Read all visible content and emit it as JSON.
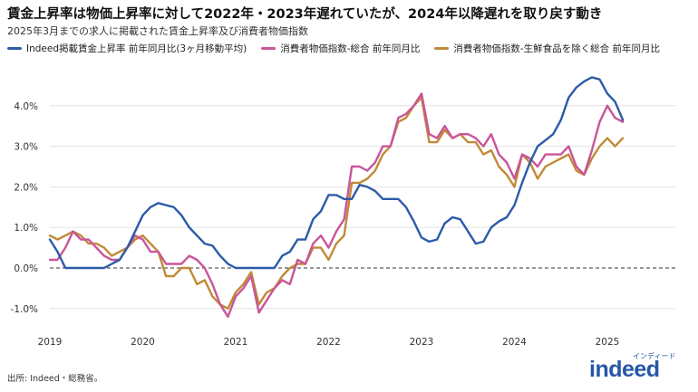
{
  "title": "賃金上昇率は物価上昇率に対して2022年・2023年遅れていたが、2024年以降遅れを取り戻す動き",
  "subtitle": "2025年3月までの求人に掲載された賃金上昇率及び消費者物価指数",
  "source": "出所: Indeed・総務省。",
  "logo": {
    "main": "indeed",
    "sub": "インディード"
  },
  "chart_data": {
    "type": "line",
    "title": "賃金上昇率は物価上昇率に対して2022年・2023年遅れていたが、2024年以降遅れを取り戻す動き",
    "subtitle": "2025年3月までの求人に掲載された賃金上昇率及び消費者物価指数",
    "xlabel": "",
    "ylabel": "",
    "x_start": "2019-01",
    "x_end": "2025-03",
    "x_ticks": [
      "2019",
      "2020",
      "2021",
      "2022",
      "2023",
      "2024",
      "2025"
    ],
    "ylim": [
      -1.4,
      4.8
    ],
    "y_ticks": [
      -1,
      0,
      1,
      2,
      3,
      4
    ],
    "y_tick_labels": [
      "-1.0%",
      "0.0%",
      "1.0%",
      "2.0%",
      "3.0%",
      "4.0%"
    ],
    "zero_line": "dashed",
    "grid": "horizontal",
    "legend_position": "top",
    "series": [
      {
        "name": "Indeed掲載賃金上昇率 前年同月比(3ヶ月移動平均)",
        "color": "#2b5ba8",
        "values": [
          0.7,
          0.4,
          0.0,
          0.0,
          0.0,
          0.0,
          0.0,
          0.0,
          0.1,
          0.2,
          0.5,
          0.9,
          1.3,
          1.5,
          1.6,
          1.55,
          1.5,
          1.3,
          1.0,
          0.8,
          0.6,
          0.55,
          0.3,
          0.1,
          0.0,
          0.0,
          0.0,
          0.0,
          0.0,
          0.0,
          0.3,
          0.4,
          0.7,
          0.7,
          1.2,
          1.4,
          1.8,
          1.8,
          1.7,
          1.7,
          2.05,
          2.0,
          1.9,
          1.7,
          1.7,
          1.7,
          1.5,
          1.15,
          0.75,
          0.65,
          0.7,
          1.1,
          1.25,
          1.2,
          0.9,
          0.6,
          0.65,
          1.0,
          1.15,
          1.25,
          1.55,
          2.1,
          2.6,
          3.0,
          3.15,
          3.3,
          3.65,
          4.2,
          4.45,
          4.6,
          4.7,
          4.65,
          4.3,
          4.1,
          3.65
        ]
      },
      {
        "name": "消費者物価指数-総合 前年同月比",
        "color": "#c9559a",
        "values": [
          0.2,
          0.2,
          0.5,
          0.9,
          0.7,
          0.7,
          0.5,
          0.3,
          0.2,
          0.2,
          0.5,
          0.8,
          0.7,
          0.4,
          0.4,
          0.1,
          0.1,
          0.1,
          0.3,
          0.2,
          0.0,
          -0.4,
          -0.9,
          -1.2,
          -0.7,
          -0.5,
          -0.2,
          -1.1,
          -0.8,
          -0.5,
          -0.3,
          -0.4,
          0.2,
          0.1,
          0.6,
          0.8,
          0.5,
          0.9,
          1.2,
          2.5,
          2.5,
          2.4,
          2.6,
          3.0,
          3.0,
          3.7,
          3.8,
          4.0,
          4.3,
          3.3,
          3.2,
          3.5,
          3.2,
          3.3,
          3.3,
          3.2,
          3.0,
          3.3,
          2.8,
          2.6,
          2.2,
          2.8,
          2.7,
          2.5,
          2.8,
          2.8,
          2.8,
          3.0,
          2.5,
          2.3,
          2.9,
          3.6,
          4.0,
          3.7,
          3.6
        ]
      },
      {
        "name": "消費者物価指数-生鮮食品を除く総合 前年同月比",
        "color": "#c08a35",
        "values": [
          0.8,
          0.7,
          0.8,
          0.9,
          0.8,
          0.6,
          0.6,
          0.5,
          0.3,
          0.4,
          0.5,
          0.7,
          0.8,
          0.6,
          0.4,
          -0.2,
          -0.2,
          0.0,
          0.0,
          -0.4,
          -0.3,
          -0.7,
          -0.9,
          -1.0,
          -0.6,
          -0.4,
          -0.1,
          -0.9,
          -0.6,
          -0.5,
          -0.2,
          0.0,
          0.1,
          0.1,
          0.5,
          0.5,
          0.2,
          0.6,
          0.8,
          2.1,
          2.1,
          2.2,
          2.4,
          2.8,
          3.0,
          3.6,
          3.7,
          4.0,
          4.2,
          3.1,
          3.1,
          3.4,
          3.2,
          3.3,
          3.1,
          3.1,
          2.8,
          2.9,
          2.5,
          2.3,
          2.0,
          2.8,
          2.6,
          2.2,
          2.5,
          2.6,
          2.7,
          2.8,
          2.4,
          2.3,
          2.7,
          3.0,
          3.2,
          3.0,
          3.2
        ]
      }
    ]
  }
}
